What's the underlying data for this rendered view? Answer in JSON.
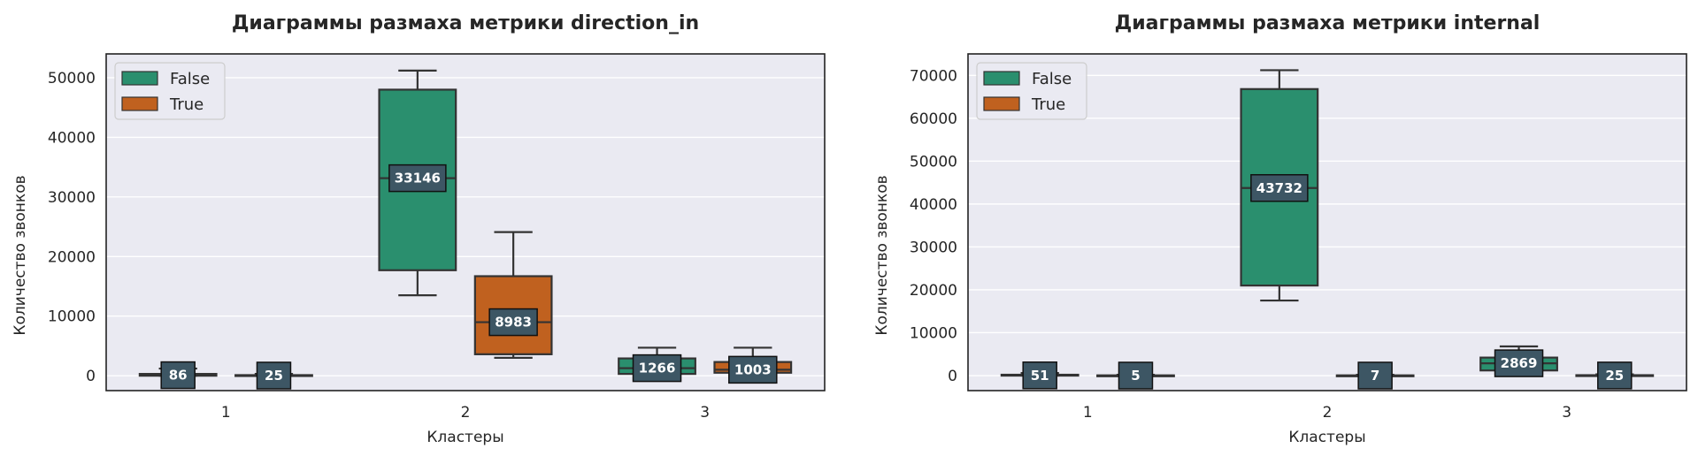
{
  "chart_data": [
    {
      "type": "box",
      "title": "Диаграммы размаха метрики direction_in",
      "xlabel": "Кластеры",
      "ylabel": "Количество звонков",
      "categories": [
        "1",
        "2",
        "3"
      ],
      "ylim": [
        -2500,
        54000
      ],
      "yticks": [
        0,
        10000,
        20000,
        30000,
        40000,
        50000
      ],
      "grid": true,
      "legend_position": "top-left",
      "series": [
        {
          "name": "False",
          "color": "#2a8f6e",
          "boxes": [
            {
              "category": "1",
              "whisker_low": 0,
              "q1": 0,
              "median": 86,
              "q3": 300,
              "whisker_high": 1200,
              "label": "86"
            },
            {
              "category": "2",
              "whisker_low": 13500,
              "q1": 17700,
              "median": 33146,
              "q3": 48000,
              "whisker_high": 51200,
              "label": "33146"
            },
            {
              "category": "3",
              "whisker_low": 0,
              "q1": 300,
              "median": 1266,
              "q3": 2900,
              "whisker_high": 4700,
              "label": "1266"
            }
          ]
        },
        {
          "name": "True",
          "color": "#c0611f",
          "boxes": [
            {
              "category": "1",
              "whisker_low": 0,
              "q1": 0,
              "median": 25,
              "q3": 100,
              "whisker_high": 300,
              "label": "25"
            },
            {
              "category": "2",
              "whisker_low": 3000,
              "q1": 3600,
              "median": 8983,
              "q3": 16700,
              "whisker_high": 24100,
              "label": "8983"
            },
            {
              "category": "3",
              "whisker_low": 0,
              "q1": 500,
              "median": 1003,
              "q3": 2300,
              "whisker_high": 4700,
              "label": "1003"
            }
          ]
        }
      ]
    },
    {
      "type": "box",
      "title": "Диаграммы размаха метрики internal",
      "xlabel": "Кластеры",
      "ylabel": "Количество звонков",
      "categories": [
        "1",
        "2",
        "3"
      ],
      "ylim": [
        -3500,
        75000
      ],
      "yticks": [
        0,
        10000,
        20000,
        30000,
        40000,
        50000,
        60000,
        70000
      ],
      "grid": true,
      "legend_position": "top-left",
      "series": [
        {
          "name": "False",
          "color": "#2a8f6e",
          "boxes": [
            {
              "category": "1",
              "whisker_low": 0,
              "q1": 0,
              "median": 51,
              "q3": 200,
              "whisker_high": 600,
              "label": "51"
            },
            {
              "category": "2",
              "whisker_low": 17500,
              "q1": 21000,
              "median": 43732,
              "q3": 66800,
              "whisker_high": 71200,
              "label": "43732"
            },
            {
              "category": "3",
              "whisker_low": 1000,
              "q1": 1200,
              "median": 2869,
              "q3": 4200,
              "whisker_high": 6800,
              "label": "2869"
            }
          ]
        },
        {
          "name": "True",
          "color": "#c0611f",
          "boxes": [
            {
              "category": "1",
              "whisker_low": 0,
              "q1": 0,
              "median": 5,
              "q3": 50,
              "whisker_high": 200,
              "label": "5"
            },
            {
              "category": "2",
              "whisker_low": 0,
              "q1": 0,
              "median": 7,
              "q3": 50,
              "whisker_high": 200,
              "label": "7"
            },
            {
              "category": "3",
              "whisker_low": 0,
              "q1": 0,
              "median": 25,
              "q3": 100,
              "whisker_high": 300,
              "label": "25"
            }
          ]
        }
      ]
    }
  ],
  "style": {
    "plot_bg": "#eaeaf2",
    "grid_color": "#ffffff",
    "label_box_color": "#3d5664",
    "edge_color": "#333333"
  }
}
